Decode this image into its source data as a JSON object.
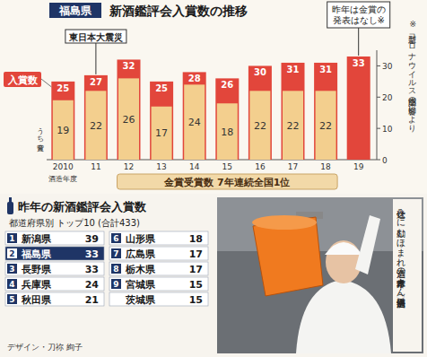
{
  "header": {
    "region": "福島県",
    "title": "新酒鑑評会入賞数の推移"
  },
  "chart_data": {
    "type": "bar",
    "categories": [
      "2010",
      "11",
      "12",
      "13",
      "14",
      "15",
      "16",
      "17",
      "18",
      "19"
    ],
    "series": [
      {
        "name": "入賞数",
        "color": "#e2463b",
        "values": [
          25,
          27,
          32,
          25,
          28,
          26,
          30,
          31,
          31,
          33
        ]
      },
      {
        "name": "うち金賞",
        "color": "#f3cf8e",
        "values": [
          19,
          22,
          26,
          17,
          24,
          18,
          22,
          22,
          22,
          null
        ]
      }
    ],
    "x_label": "酒造年度",
    "ylim": [
      0,
      35
    ],
    "yticks": [
      0,
      10,
      20,
      30
    ],
    "stacked": false,
    "data_labels": true,
    "grid": false,
    "annotations": [
      "東日本大震災",
      "昨年は金賞の発表はなし※",
      "※新型コロナウイルス感染症の影響により",
      "金賞受賞数 7年連続全国1位"
    ]
  },
  "ranking": {
    "title": "昨年の新酒鑑評会入賞数",
    "subtitle": "都道府県別 トップ10 (合計433)",
    "rows": [
      {
        "rank": 1,
        "name": "新潟県",
        "value": 39
      },
      {
        "rank": 2,
        "name": "福島県",
        "value": 33
      },
      {
        "rank": 3,
        "name": "長野県",
        "value": 33
      },
      {
        "rank": 4,
        "name": "兵庫県",
        "value": 24
      },
      {
        "rank": 5,
        "name": "秋田県",
        "value": 21
      },
      {
        "rank": 6,
        "name": "山形県",
        "value": 18
      },
      {
        "rank": 7,
        "name": "広島県",
        "value": 17
      },
      {
        "rank": 8,
        "name": "栃木県",
        "value": 17
      },
      {
        "rank": 9,
        "name": "宮城県",
        "value": 15
      },
      {
        "rank": null,
        "name": "茨城県",
        "value": 15
      }
    ]
  },
  "photo": {
    "caption": "仕込みに励むほまれ酒造の鈴木孝市さん（同酒造提供）"
  },
  "credit": "デザイン・刀祢 絢子"
}
